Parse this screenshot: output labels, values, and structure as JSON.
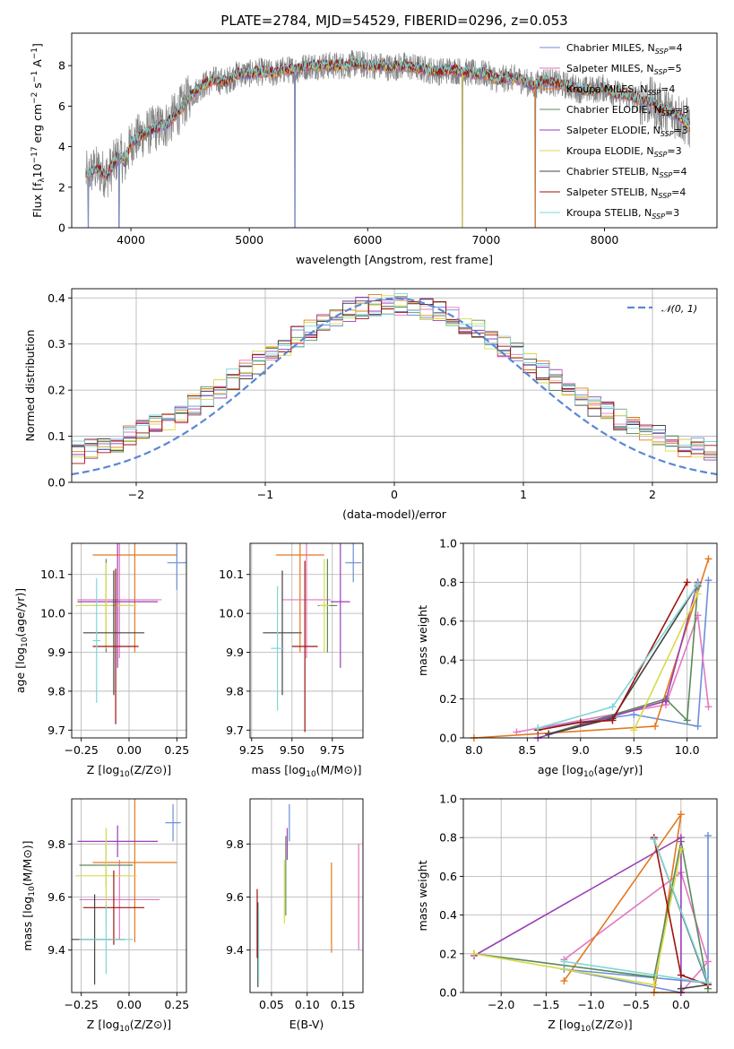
{
  "figure_title": "PLATE=2784, MJD=54529, FIBERID=0296, z=0.053",
  "colors": [
    "#6b8fd8",
    "#e377c2",
    "#e3781e",
    "#5a8a5a",
    "#9a3fb5",
    "#d9d94a",
    "#444444",
    "#a01010",
    "#7fd6d6"
  ],
  "chart_data": [
    {
      "id": "spectrum",
      "type": "line",
      "xlabel": "wavelength [Angstrom, rest frame]",
      "xlim": [
        3500,
        8950
      ],
      "ylim": [
        0,
        9.6
      ],
      "xticks": [
        4000,
        5000,
        6000,
        7000,
        8000
      ],
      "yticks": [
        0,
        2,
        4,
        6,
        8
      ],
      "ylabel_parts": [
        "Flux [f",
        "λ",
        "10",
        "−17",
        " erg cm",
        "−2",
        " s",
        "−1",
        " A",
        "−1",
        "]"
      ],
      "legend": [
        {
          "name": "Chabrier MILES, N",
          "sub": "SSP",
          "suffix": "=4",
          "color": "#6b8fd8"
        },
        {
          "name": "Salpeter MILES, N",
          "sub": "SSP",
          "suffix": "=5",
          "color": "#e377c2"
        },
        {
          "name": "Kroupa MILES, N",
          "sub": "SSP",
          "suffix": "=4",
          "color": "#e3781e"
        },
        {
          "name": "Chabrier ELODIE, N",
          "sub": "SSP",
          "suffix": "=3",
          "color": "#5a8a5a"
        },
        {
          "name": "Salpeter ELODIE, N",
          "sub": "SSP",
          "suffix": "=3",
          "color": "#9a3fb5"
        },
        {
          "name": "Kroupa ELODIE, N",
          "sub": "SSP",
          "suffix": "=3",
          "color": "#d9d94a"
        },
        {
          "name": "Chabrier STELIB, N",
          "sub": "SSP",
          "suffix": "=4",
          "color": "#444444"
        },
        {
          "name": "Salpeter STELIB, N",
          "sub": "SSP",
          "suffix": "=4",
          "color": "#a01010"
        },
        {
          "name": "Kroupa STELIB, N",
          "sub": "SSP",
          "suffix": "=3",
          "color": "#7fd6d6"
        }
      ],
      "data_color": "#808080",
      "continuum_points": [
        [
          3620,
          2.6
        ],
        [
          3700,
          2.9
        ],
        [
          3800,
          2.6
        ],
        [
          3900,
          3.6
        ],
        [
          3950,
          3.2
        ],
        [
          4000,
          4.2
        ],
        [
          4100,
          4.6
        ],
        [
          4200,
          4.9
        ],
        [
          4300,
          5.1
        ],
        [
          4400,
          5.7
        ],
        [
          4500,
          6.5
        ],
        [
          4600,
          7.0
        ],
        [
          4700,
          7.3
        ],
        [
          4800,
          7.2
        ],
        [
          4900,
          7.6
        ],
        [
          5000,
          7.6
        ],
        [
          5100,
          7.7
        ],
        [
          5200,
          7.6
        ],
        [
          5300,
          7.8
        ],
        [
          5400,
          7.8
        ],
        [
          5500,
          8.0
        ],
        [
          5600,
          8.0
        ],
        [
          5700,
          8.0
        ],
        [
          5800,
          8.0
        ],
        [
          5900,
          8.1
        ],
        [
          6000,
          8.0
        ],
        [
          6100,
          8.0
        ],
        [
          6200,
          7.9
        ],
        [
          6300,
          8.0
        ],
        [
          6400,
          7.9
        ],
        [
          6500,
          7.8
        ],
        [
          6600,
          7.7
        ],
        [
          6700,
          7.8
        ],
        [
          6800,
          7.7
        ],
        [
          6900,
          7.6
        ],
        [
          7000,
          7.6
        ],
        [
          7100,
          7.3
        ],
        [
          7200,
          7.4
        ],
        [
          7300,
          7.3
        ],
        [
          7400,
          7.0
        ],
        [
          7500,
          7.3
        ],
        [
          7600,
          7.1
        ],
        [
          7700,
          7.0
        ],
        [
          7800,
          6.8
        ],
        [
          7900,
          6.8
        ],
        [
          8000,
          6.9
        ],
        [
          8100,
          6.6
        ],
        [
          8200,
          6.5
        ],
        [
          8300,
          6.3
        ],
        [
          8400,
          6.2
        ],
        [
          8500,
          5.8
        ],
        [
          8600,
          5.6
        ],
        [
          8700,
          5.2
        ],
        [
          8720,
          5.0
        ]
      ],
      "spike_wavelengths": [
        3640,
        3900,
        5385,
        6800,
        7415
      ]
    },
    {
      "id": "residuals",
      "type": "histogram",
      "xlabel": "(data-model)/error",
      "ylabel": "Normed distribution",
      "xlim": [
        -2.5,
        2.5
      ],
      "ylim": [
        0,
        0.42
      ],
      "xticks": [
        -2,
        -1,
        0,
        1,
        2
      ],
      "xtick_labels": [
        "−2",
        "−1",
        "0",
        "1",
        "2"
      ],
      "yticks": [
        0.0,
        0.1,
        0.2,
        0.3,
        0.4
      ],
      "ytick_labels": [
        "0.0",
        "0.1",
        "0.2",
        "0.3",
        "0.4"
      ],
      "curve_label": "𝒩(0, 1)",
      "curve_color": "#5b87d6",
      "bin_width": 0.1
    },
    {
      "id": "age_vs_Z",
      "type": "errorbar",
      "xlabel": "Z [log10(Z/Z⊙)]",
      "ylabel": "age  [log10(age/yr)]",
      "xlim": [
        -0.3,
        0.3
      ],
      "ylim": [
        9.68,
        10.18
      ],
      "xticks": [
        -0.25,
        0.0,
        0.25
      ],
      "xtick_labels": [
        "−0.25",
        "0.00",
        "0.25"
      ],
      "yticks": [
        9.7,
        9.8,
        9.9,
        10.0,
        10.1
      ],
      "ytick_labels": [
        "9.7",
        "9.8",
        "9.9",
        "10.0",
        "10.1"
      ],
      "points": [
        {
          "x": 0.25,
          "y": 10.13,
          "xerr": 0.05,
          "yerr": 0.07,
          "color": "#6b8fd8"
        },
        {
          "x": -0.05,
          "y": 10.035,
          "xerr": 0.22,
          "yerr": 0.15,
          "color": "#e377c2"
        },
        {
          "x": 0.03,
          "y": 10.15,
          "xerr": 0.22,
          "yerr": 0.25,
          "color": "#e3781e"
        },
        {
          "x": -0.12,
          "y": 10.02,
          "xerr": 0.13,
          "yerr": 0.12,
          "color": "#5a8a5a"
        },
        {
          "x": -0.06,
          "y": 10.03,
          "xerr": 0.21,
          "yerr": 0.17,
          "color": "#9a3fb5"
        },
        {
          "x": -0.12,
          "y": 10.02,
          "xerr": 0.16,
          "yerr": 0.11,
          "color": "#d9d94a"
        },
        {
          "x": -0.08,
          "y": 9.95,
          "xerr": 0.16,
          "yerr": 0.16,
          "color": "#444444"
        },
        {
          "x": -0.07,
          "y": 9.915,
          "xerr": 0.12,
          "yerr": 0.2,
          "color": "#a01010"
        },
        {
          "x": -0.17,
          "y": 9.93,
          "xerr": 0.02,
          "yerr": 0.16,
          "color": "#7fd6d6"
        }
      ]
    },
    {
      "id": "age_vs_mass",
      "type": "errorbar",
      "xlabel": "mass [log10(M/M⊙)]",
      "ylabel": "",
      "xlim": [
        9.24,
        9.94
      ],
      "ylim": [
        9.68,
        10.18
      ],
      "xticks": [
        9.25,
        9.5,
        9.75
      ],
      "xtick_labels": [
        "9.25",
        "9.50",
        "9.75"
      ],
      "yticks": [
        9.7,
        9.8,
        9.9,
        10.0,
        10.1
      ],
      "ytick_labels": [
        "9.7",
        "9.8",
        "9.9",
        "10.0",
        "10.1"
      ],
      "points": [
        {
          "x": 9.88,
          "y": 10.13,
          "xerr": 0.05,
          "yerr": 0.05,
          "color": "#6b8fd8"
        },
        {
          "x": 9.59,
          "y": 10.035,
          "xerr": 0.15,
          "yerr": 0.15,
          "color": "#e377c2"
        },
        {
          "x": 9.55,
          "y": 10.15,
          "xerr": 0.15,
          "yerr": 0.25,
          "color": "#e3781e"
        },
        {
          "x": 9.72,
          "y": 10.02,
          "xerr": 0.06,
          "yerr": 0.12,
          "color": "#5a8a5a"
        },
        {
          "x": 9.8,
          "y": 10.03,
          "xerr": 0.06,
          "yerr": 0.17,
          "color": "#9a3fb5"
        },
        {
          "x": 9.7,
          "y": 10.02,
          "xerr": 0.03,
          "yerr": 0.12,
          "color": "#d9d94a"
        },
        {
          "x": 9.44,
          "y": 9.95,
          "xerr": 0.12,
          "yerr": 0.16,
          "color": "#444444"
        },
        {
          "x": 9.58,
          "y": 9.915,
          "xerr": 0.08,
          "yerr": 0.22,
          "color": "#a01010"
        },
        {
          "x": 9.41,
          "y": 9.91,
          "xerr": 0.04,
          "yerr": 0.16,
          "color": "#7fd6d6"
        }
      ]
    },
    {
      "id": "weight_vs_age",
      "type": "line",
      "xlabel": "age  [log10(age/yr)]",
      "ylabel": "mass weight",
      "xlim": [
        7.9,
        10.28
      ],
      "ylim": [
        0,
        1.0
      ],
      "xticks": [
        8.0,
        8.5,
        9.0,
        9.5,
        10.0
      ],
      "xtick_labels": [
        "8.0",
        "8.5",
        "9.0",
        "9.5",
        "10.0"
      ],
      "yticks": [
        0.0,
        0.2,
        0.4,
        0.6,
        0.8,
        1.0
      ],
      "ytick_labels": [
        "0.0",
        "0.2",
        "0.4",
        "0.6",
        "0.8",
        "1.0"
      ],
      "series": [
        {
          "color": "#6b8fd8",
          "x": [
            8.6,
            9.5,
            10.1,
            10.2
          ],
          "y": [
            0.05,
            0.12,
            0.06,
            0.81
          ]
        },
        {
          "color": "#e377c2",
          "x": [
            8.4,
            9.8,
            10.1,
            10.2
          ],
          "y": [
            0.03,
            0.17,
            0.63,
            0.16
          ]
        },
        {
          "color": "#e3781e",
          "x": [
            8.0,
            9.7,
            10.2
          ],
          "y": [
            0.0,
            0.06,
            0.92
          ]
        },
        {
          "color": "#5a8a5a",
          "x": [
            8.7,
            9.8,
            10.0,
            10.1
          ],
          "y": [
            0.02,
            0.2,
            0.09,
            0.78
          ]
        },
        {
          "color": "#9a3fb5",
          "x": [
            8.6,
            9.8,
            10.1
          ],
          "y": [
            0.0,
            0.19,
            0.8
          ]
        },
        {
          "color": "#d9d94a",
          "x": [
            9.5,
            10.1
          ],
          "y": [
            0.04,
            0.74
          ]
        },
        {
          "color": "#444444",
          "x": [
            8.7,
            9.3,
            10.1
          ],
          "y": [
            0.02,
            0.1,
            0.79
          ]
        },
        {
          "color": "#a01010",
          "x": [
            8.6,
            9.0,
            9.3,
            10.0
          ],
          "y": [
            0.04,
            0.08,
            0.09,
            0.8
          ]
        },
        {
          "color": "#7fd6d6",
          "x": [
            8.6,
            9.3,
            10.1
          ],
          "y": [
            0.05,
            0.16,
            0.79
          ]
        }
      ]
    },
    {
      "id": "mass_vs_Z",
      "type": "errorbar",
      "xlabel": "Z [log10(Z/Z⊙)]",
      "ylabel": "mass [log10(M/M⊙)]",
      "xlim": [
        -0.3,
        0.3
      ],
      "ylim": [
        9.24,
        9.97
      ],
      "xticks": [
        -0.25,
        0.0,
        0.25
      ],
      "xtick_labels": [
        "−0.25",
        "0.00",
        "0.25"
      ],
      "yticks": [
        9.4,
        9.6,
        9.8
      ],
      "ytick_labels": [
        "9.4",
        "9.6",
        "9.8"
      ],
      "points": [
        {
          "x": 0.23,
          "y": 9.88,
          "xerr": 0.04,
          "yerr": 0.07,
          "color": "#6b8fd8"
        },
        {
          "x": -0.05,
          "y": 9.59,
          "xerr": 0.21,
          "yerr": 0.15,
          "color": "#e377c2"
        },
        {
          "x": 0.03,
          "y": 9.73,
          "xerr": 0.22,
          "yerr": 0.3,
          "color": "#e3781e"
        },
        {
          "x": -0.12,
          "y": 9.72,
          "xerr": 0.14,
          "yerr": 0.08,
          "color": "#5a8a5a"
        },
        {
          "x": -0.06,
          "y": 9.81,
          "xerr": 0.21,
          "yerr": 0.06,
          "color": "#9a3fb5"
        },
        {
          "x": -0.12,
          "y": 9.68,
          "xerr": 0.16,
          "yerr": 0.18,
          "color": "#d9d94a"
        },
        {
          "x": -0.18,
          "y": 9.44,
          "xerr": 0.16,
          "yerr": 0.17,
          "color": "#444444"
        },
        {
          "x": -0.08,
          "y": 9.56,
          "xerr": 0.16,
          "yerr": 0.14,
          "color": "#a01010"
        },
        {
          "x": -0.12,
          "y": 9.44,
          "xerr": 0.14,
          "yerr": 0.13,
          "color": "#7fd6d6"
        }
      ]
    },
    {
      "id": "mass_vs_ebv",
      "type": "errorbar",
      "xlabel": "E(B-V)",
      "ylabel": "",
      "xlim": [
        0.02,
        0.178
      ],
      "ylim": [
        9.24,
        9.97
      ],
      "xticks": [
        0.05,
        0.1,
        0.15
      ],
      "xtick_labels": [
        "0.05",
        "0.10",
        "0.15"
      ],
      "yticks": [
        9.4,
        9.6,
        9.8
      ],
      "ytick_labels": [
        "9.4",
        "9.6",
        "9.8"
      ],
      "points": [
        {
          "x": 0.075,
          "y": 9.88,
          "xerr": 0,
          "yerr": 0.07,
          "color": "#6b8fd8"
        },
        {
          "x": 0.172,
          "y": 9.6,
          "xerr": 0,
          "yerr": 0.2,
          "color": "#e377c2"
        },
        {
          "x": 0.134,
          "y": 9.56,
          "xerr": 0,
          "yerr": 0.17,
          "color": "#e3781e"
        },
        {
          "x": 0.07,
          "y": 9.68,
          "xerr": 0,
          "yerr": 0.15,
          "color": "#5a8a5a"
        },
        {
          "x": 0.072,
          "y": 9.8,
          "xerr": 0,
          "yerr": 0.06,
          "color": "#9a3fb5"
        },
        {
          "x": 0.068,
          "y": 9.62,
          "xerr": 0,
          "yerr": 0.12,
          "color": "#d9d94a"
        },
        {
          "x": 0.031,
          "y": 9.42,
          "xerr": 0,
          "yerr": 0.16,
          "color": "#444444"
        },
        {
          "x": 0.03,
          "y": 9.5,
          "xerr": 0,
          "yerr": 0.13,
          "color": "#a01010"
        },
        {
          "x": 0.032,
          "y": 9.42,
          "xerr": 0,
          "yerr": 0.14,
          "color": "#7fd6d6"
        }
      ]
    },
    {
      "id": "weight_vs_Z",
      "type": "line",
      "xlabel": "Z [log10(Z/Z⊙)]",
      "ylabel": "mass weight",
      "xlim": [
        -2.42,
        0.4
      ],
      "ylim": [
        0,
        1.0
      ],
      "xticks": [
        -2.0,
        -1.5,
        -1.0,
        -0.5,
        0.0
      ],
      "xtick_labels": [
        "−2.0",
        "−1.5",
        "−1.0",
        "−0.5",
        "0.0"
      ],
      "yticks": [
        0.0,
        0.2,
        0.4,
        0.6,
        0.8,
        1.0
      ],
      "ytick_labels": [
        "0.0",
        "0.2",
        "0.4",
        "0.6",
        "0.8",
        "1.0"
      ],
      "series": [
        {
          "color": "#6b8fd8",
          "x": [
            0.3,
            0.3,
            -1.3,
            0.0
          ],
          "y": [
            0.81,
            0.05,
            0.12,
            0.0
          ]
        },
        {
          "color": "#e377c2",
          "x": [
            -1.3,
            0.0,
            0.3,
            0.0
          ],
          "y": [
            0.17,
            0.62,
            0.16,
            0.0
          ]
        },
        {
          "color": "#e3781e",
          "x": [
            -1.3,
            0.0,
            -0.3,
            0.0
          ],
          "y": [
            0.06,
            0.92,
            0.0,
            0.0
          ]
        },
        {
          "color": "#5a8a5a",
          "x": [
            -2.3,
            -0.3,
            0.0,
            0.3
          ],
          "y": [
            0.2,
            0.08,
            0.78,
            0.02
          ]
        },
        {
          "color": "#9a3fb5",
          "x": [
            -2.3,
            0.0,
            0.0
          ],
          "y": [
            0.19,
            0.8,
            0.0
          ]
        },
        {
          "color": "#d9d94a",
          "x": [
            -2.3,
            -0.3,
            0.0
          ],
          "y": [
            0.2,
            0.04,
            0.74
          ]
        },
        {
          "color": "#444444",
          "x": [
            -0.3,
            0.3,
            0.0
          ],
          "y": [
            0.79,
            0.04,
            0.02
          ]
        },
        {
          "color": "#a01010",
          "x": [
            -0.3,
            0.0,
            0.3
          ],
          "y": [
            0.8,
            0.09,
            0.04
          ]
        },
        {
          "color": "#7fd6d6",
          "x": [
            -0.3,
            0.3,
            -1.3
          ],
          "y": [
            0.79,
            0.05,
            0.16
          ]
        }
      ]
    }
  ]
}
